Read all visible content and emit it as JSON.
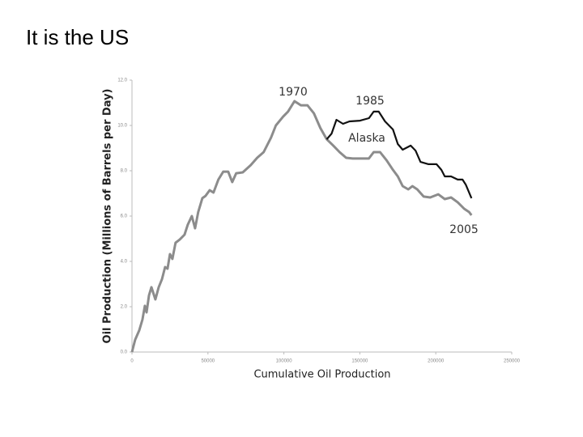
{
  "title": "It is the US",
  "chart_data": {
    "type": "line",
    "x_label": "Cumulative Oil Production",
    "y_label": "Oil Production (Millions of Barrels per Day)",
    "xlim": [
      0,
      250000
    ],
    "xticks": [
      0,
      50000,
      100000,
      150000,
      200000,
      250000
    ],
    "ylim": [
      0,
      12
    ],
    "yticks": [
      {
        "value": 0,
        "label": "0.0"
      },
      {
        "value": 2,
        "label": "2.0"
      },
      {
        "value": 4,
        "label": "4.0"
      },
      {
        "value": 6,
        "label": "6.0"
      },
      {
        "value": 8,
        "label": "8.0"
      },
      {
        "value": 10,
        "label": "10.0"
      },
      {
        "value": 12,
        "label": "12.0"
      }
    ],
    "annotations": [
      "1970",
      "1985",
      "Alaska",
      "2005"
    ],
    "series": [
      {
        "color": "#8c8c8c",
        "x": [
          0,
          2100,
          4800,
          6900,
          8500,
          9600,
          11200,
          12800,
          15400,
          17600,
          19700,
          21800,
          23400,
          25000,
          26600,
          28700,
          31400,
          34600,
          36700,
          39400,
          41500,
          43600,
          46300,
          48400,
          51100,
          53700,
          56900,
          60100,
          63300,
          66000,
          68600,
          72900,
          78200,
          82400,
          86700,
          91500,
          94700,
          99500,
          102700,
          107000,
          111200,
          115500,
          119700,
          124000,
          128200,
          132500,
          136700,
          141000,
          145300,
          150500,
          155900,
          159100,
          163300,
          167600,
          171800,
          175000,
          178200,
          181900,
          184600,
          187800,
          192000,
          196300,
          201600,
          205900,
          210100,
          214400,
          218700,
          221900,
          223500
        ],
        "values": [
          0,
          0.54,
          0.96,
          1.43,
          2.04,
          1.75,
          2.5,
          2.86,
          2.32,
          2.86,
          3.21,
          3.75,
          3.68,
          4.32,
          4.11,
          4.82,
          4.96,
          5.18,
          5.61,
          6.0,
          5.46,
          6.18,
          6.79,
          6.89,
          7.14,
          7.04,
          7.61,
          7.96,
          7.96,
          7.5,
          7.89,
          7.93,
          8.25,
          8.57,
          8.82,
          9.46,
          10.0,
          10.39,
          10.61,
          11.07,
          10.89,
          10.89,
          10.54,
          9.89,
          9.39,
          9.11,
          8.82,
          8.57,
          8.54,
          8.54,
          8.54,
          8.82,
          8.82,
          8.46,
          8.04,
          7.75,
          7.32,
          7.18,
          7.32,
          7.18,
          6.86,
          6.82,
          6.96,
          6.75,
          6.82,
          6.61,
          6.32,
          6.18,
          6.04
        ]
      },
      {
        "color": "#111111",
        "x": [
          128200,
          131400,
          134600,
          138900,
          143200,
          150100,
          156000,
          159100,
          162400,
          166600,
          171800,
          175000,
          178200,
          183500,
          186700,
          189900,
          195200,
          200500,
          203700,
          205900,
          210100,
          214400,
          217600,
          219700,
          223500
        ],
        "values": [
          9.39,
          9.64,
          10.25,
          10.07,
          10.18,
          10.21,
          10.32,
          10.61,
          10.61,
          10.18,
          9.82,
          9.18,
          8.93,
          9.11,
          8.89,
          8.39,
          8.29,
          8.29,
          8.04,
          7.75,
          7.75,
          7.61,
          7.61,
          7.39,
          6.79
        ]
      }
    ]
  }
}
